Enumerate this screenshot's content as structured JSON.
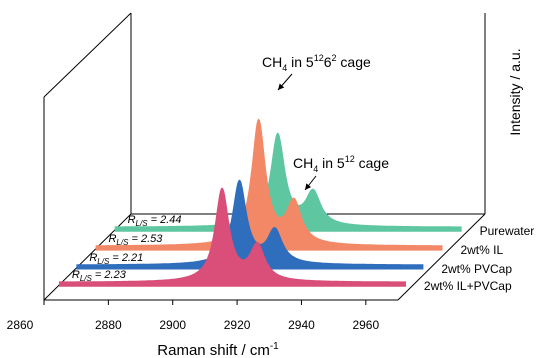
{
  "chart_data": {
    "type": "line",
    "style": "3d-waterfall",
    "x_axis": {
      "label": "Raman shift / cm",
      "label_superscript": "-1",
      "range": [
        2860,
        2970
      ],
      "ticks": [
        2860,
        2880,
        2900,
        2920,
        2940,
        2960
      ]
    },
    "y_axis": {
      "label": "Intensity / a.u."
    },
    "series": [
      {
        "name": "2wt% IL+PVCap",
        "color": "#d94f79",
        "ratio_label": "2.23",
        "peaks": [
          {
            "x": 2911,
            "height": 1.0,
            "width": 2.6
          },
          {
            "x": 2922,
            "height": 0.38,
            "width": 2.8
          }
        ]
      },
      {
        "name": "2wt% PVCap",
        "color": "#2f6dbd",
        "ratio_label": "2.21",
        "peaks": [
          {
            "x": 2911,
            "height": 0.9,
            "width": 2.6
          },
          {
            "x": 2922,
            "height": 0.36,
            "width": 2.8
          }
        ]
      },
      {
        "name": "2wt% IL",
        "color": "#f28866",
        "ratio_label": "2.53",
        "peaks": [
          {
            "x": 2911,
            "height": 1.35,
            "width": 2.6
          },
          {
            "x": 2922,
            "height": 0.45,
            "width": 2.8
          }
        ]
      },
      {
        "name": "Purewater",
        "color": "#5ec6a1",
        "ratio_label": "2.44",
        "peaks": [
          {
            "x": 2911,
            "height": 1.0,
            "width": 2.6
          },
          {
            "x": 2922,
            "height": 0.36,
            "width": 2.8
          }
        ]
      }
    ],
    "ratio_prefix_main": "R",
    "ratio_prefix_sub": "L/S",
    "ratio_eq": " = ",
    "annotations": [
      {
        "name": "large-cage",
        "mol": "CH",
        "mol_sub": "4",
        "text1": " in 5",
        "sup1": "12",
        "text2": "6",
        "sup2": "2",
        "text3": " cage"
      },
      {
        "name": "small-cage",
        "mol": "CH",
        "mol_sub": "4",
        "text1": " in 5",
        "sup1": "12",
        "text3": " cage"
      }
    ]
  }
}
